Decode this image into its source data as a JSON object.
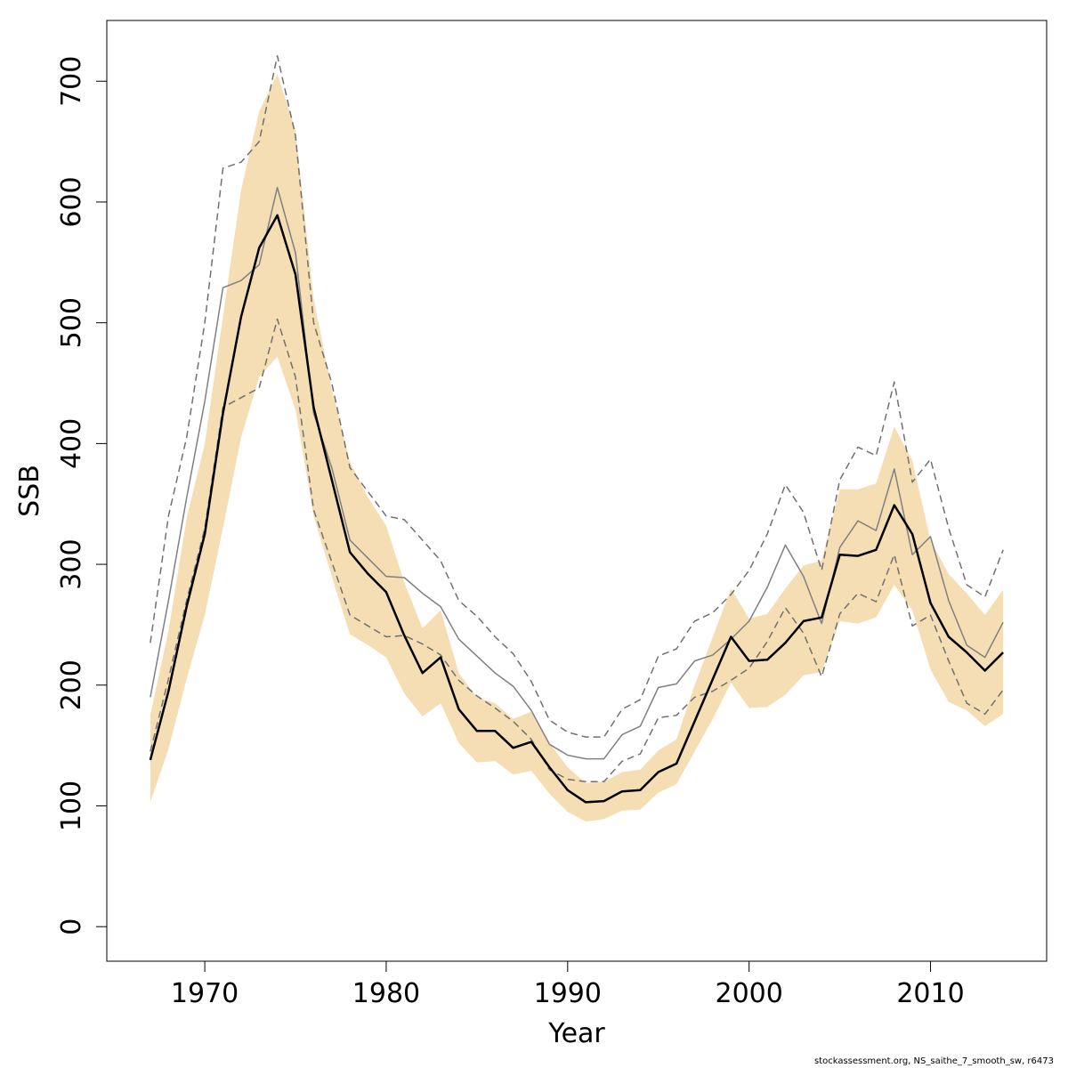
{
  "chart_data": {
    "type": "line",
    "xlabel": "Year",
    "ylabel": "SSB",
    "xlim": [
      1964.6,
      2016.4
    ],
    "ylim": [
      -28.6,
      750.3
    ],
    "x_ticks": [
      1970,
      1980,
      1990,
      2000,
      2010
    ],
    "y_ticks": [
      0,
      100,
      200,
      300,
      400,
      500,
      600,
      700
    ],
    "grid": false,
    "legend": "none",
    "colors": {
      "band": "#f5deb3",
      "main": "#000000",
      "prev": "#808080",
      "prev_ci": "#707070"
    },
    "x": [
      1967,
      1968,
      1969,
      1970,
      1971,
      1972,
      1973,
      1974,
      1975,
      1976,
      1977,
      1978,
      1979,
      1980,
      1981,
      1982,
      1983,
      1984,
      1985,
      1986,
      1987,
      1988,
      1989,
      1990,
      1991,
      1992,
      1993,
      1994,
      1995,
      1996,
      1997,
      1998,
      1999,
      2000,
      2001,
      2002,
      2003,
      2004,
      2005,
      2006,
      2007,
      2008,
      2009,
      2010,
      2011,
      2012,
      2013,
      2014
    ],
    "series": [
      {
        "role": "estimate",
        "values": [
          138,
          195,
          265,
          325,
          425,
          505,
          562,
          589,
          540,
          430,
          370,
          310,
          292,
          277,
          241,
          210,
          223,
          180,
          162,
          162,
          148,
          153,
          132,
          113,
          103,
          104,
          112,
          113,
          128,
          135,
          170,
          205,
          240,
          220,
          221,
          235,
          253,
          256,
          308,
          307,
          312,
          349,
          325,
          268,
          240,
          227,
          212,
          227
        ]
      },
      {
        "role": "ci_low",
        "values": [
          103,
          147,
          205,
          258,
          330,
          405,
          455,
          472,
          428,
          340,
          290,
          242,
          233,
          223,
          193,
          174,
          185,
          152,
          136,
          137,
          126,
          129,
          110,
          95,
          87,
          89,
          96,
          97,
          111,
          118,
          145,
          172,
          202,
          181,
          182,
          192,
          208,
          211,
          253,
          251,
          256,
          283,
          262,
          213,
          186,
          179,
          166,
          176
        ]
      },
      {
        "role": "ci_high",
        "values": [
          175,
          245,
          338,
          400,
          505,
          610,
          675,
          706,
          660,
          520,
          445,
          385,
          355,
          332,
          285,
          247,
          262,
          210,
          190,
          185,
          172,
          178,
          152,
          132,
          119,
          120,
          128,
          130,
          146,
          155,
          200,
          240,
          280,
          255,
          259,
          280,
          299,
          303,
          362,
          362,
          367,
          414,
          386,
          320,
          292,
          276,
          258,
          279
        ]
      },
      {
        "role": "previous",
        "values": [
          190,
          270,
          355,
          435,
          529,
          535,
          548,
          612,
          558,
          425,
          380,
          320,
          305,
          290,
          289,
          276,
          265,
          238,
          224,
          210,
          199,
          179,
          151,
          142,
          139,
          139,
          159,
          166,
          198,
          201,
          220,
          225,
          238,
          253,
          281,
          316,
          290,
          251,
          314,
          336,
          328,
          379,
          308,
          323,
          270,
          233,
          223,
          252
        ]
      },
      {
        "role": "previous_ci_low",
        "values": [
          145,
          205,
          270,
          330,
          430,
          438,
          446,
          503,
          455,
          345,
          302,
          258,
          249,
          240,
          241,
          234,
          225,
          204,
          191,
          181,
          170,
          155,
          130,
          122,
          120,
          120,
          137,
          143,
          173,
          175,
          190,
          195,
          204,
          214,
          236,
          264,
          243,
          207,
          259,
          276,
          269,
          308,
          249,
          258,
          220,
          185,
          176,
          196
        ]
      },
      {
        "role": "previous_ci_high",
        "values": [
          235,
          340,
          405,
          500,
          628,
          633,
          650,
          721,
          655,
          500,
          450,
          380,
          360,
          340,
          337,
          320,
          303,
          270,
          257,
          240,
          226,
          203,
          171,
          161,
          157,
          157,
          180,
          188,
          224,
          230,
          253,
          260,
          275,
          295,
          325,
          366,
          343,
          295,
          370,
          397,
          390,
          451,
          368,
          387,
          330,
          283,
          273,
          312
        ]
      }
    ]
  },
  "footer_text": "stockassessment.org, NS_saithe_7_smooth_sw, r6473"
}
